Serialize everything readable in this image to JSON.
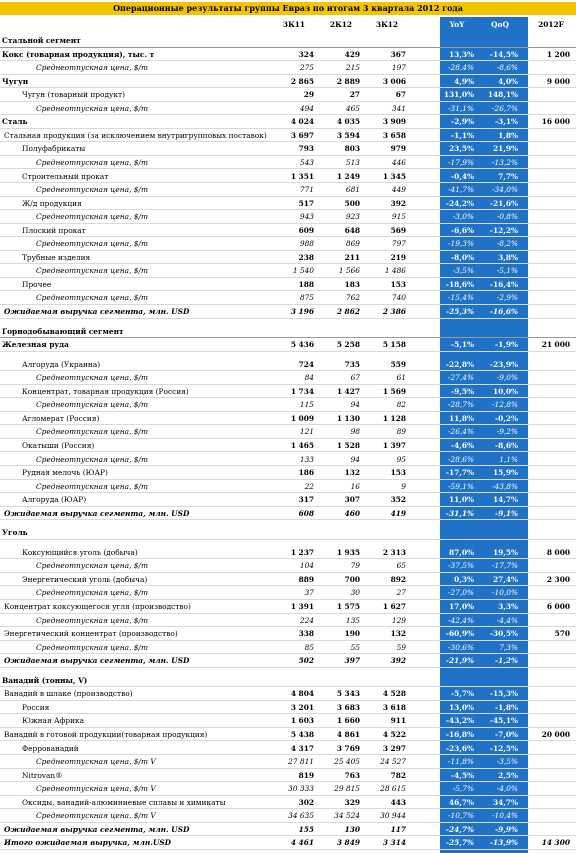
{
  "title": "Операционные результаты группы Евраз по итогам 3 квартала 2012 года",
  "header": [
    "3К11",
    "2К12",
    "3К12",
    "YoY",
    "QoQ",
    "2012F"
  ],
  "rows": [
    {
      "label": "Стальной сегмент"
    },
    {
      "label": "Кокс (товарная продукция), тыс. т",
      "cells": [
        "324",
        "429",
        "367",
        "13,3%",
        "-14,5%",
        "1 200"
      ]
    },
    {
      "label": "Среднеотпускная цена, $/т",
      "cells": [
        "275",
        "215",
        "197",
        "-28,4%",
        "-8,6%"
      ]
    },
    {
      "label": "Чугун",
      "cells": [
        "2 865",
        "2 889",
        "3 006",
        "4,9%",
        "4,0%",
        "9 000"
      ]
    },
    {
      "label": "Чугун (товарный продукт)",
      "cells": [
        "29",
        "27",
        "67",
        "131,0%",
        "148,1%"
      ]
    },
    {
      "label": "Среднеотпускная цена, $/т",
      "cells": [
        "494",
        "465",
        "341",
        "-31,1%",
        "-26,7%"
      ]
    },
    {
      "label": "Сталь",
      "cells": [
        "4 024",
        "4 035",
        "3 909",
        "-2,9%",
        "-3,1%",
        "16 000"
      ]
    },
    {
      "label": "Стальная продукция (за исключением внутригрупповых поставок)",
      "cells": [
        "3 697",
        "3 594",
        "3 658",
        "-1,1%",
        "1,8%"
      ]
    },
    {
      "label": "Полуфабрикаты",
      "cells": [
        "793",
        "803",
        "979",
        "23,5%",
        "21,9%"
      ]
    },
    {
      "label": "Среднеотпускная цена, $/т",
      "cells": [
        "543",
        "513",
        "446",
        "-17,9%",
        "-13,2%"
      ]
    },
    {
      "label": "Строительный прокат",
      "cells": [
        "1 351",
        "1 249",
        "1 345",
        "-0,4%",
        "7,7%"
      ]
    },
    {
      "label": "Среднеотпускная цена, $/т",
      "cells": [
        "771",
        "681",
        "449",
        "-41,7%",
        "-34,0%"
      ]
    },
    {
      "label": "Ж/д продукция",
      "cells": [
        "517",
        "500",
        "392",
        "-24,2%",
        "-21,6%"
      ]
    },
    {
      "label": "Среднеотпускная цена, $/т",
      "cells": [
        "943",
        "923",
        "915",
        "-3,0%",
        "-0,8%"
      ]
    },
    {
      "label": "Плоский прокат",
      "cells": [
        "609",
        "648",
        "569",
        "-6,6%",
        "-12,2%"
      ]
    },
    {
      "label": "Среднеотпускная цена, $/т",
      "cells": [
        "988",
        "869",
        "797",
        "-19,3%",
        "-8,2%"
      ]
    },
    {
      "label": "Трубные изделия",
      "cells": [
        "238",
        "211",
        "219",
        "-8,0%",
        "3,8%"
      ]
    },
    {
      "label": "Среднеотпускная цена, $/т",
      "cells": [
        "1 540",
        "1 566",
        "1 486",
        "-3,5%",
        "-5,1%"
      ]
    },
    {
      "label": "Прочее",
      "cells": [
        "188",
        "183",
        "153",
        "-18,6%",
        "-16,4%"
      ]
    },
    {
      "label": "Среднеотпускная цена, $/т",
      "cells": [
        "875",
        "762",
        "740",
        "-15,4%",
        "-2,9%"
      ]
    },
    {
      "label": "Ожидаемая выручка сегмента, млн. USD",
      "cells": [
        "3 196",
        "2 862",
        "2 386",
        "-25,3%",
        "-16,6%"
      ]
    },
    {
      "label": "Горнодобывающий сегмент"
    },
    {
      "label": "Железная руда",
      "cells": [
        "5 436",
        "5 258",
        "5 158",
        "-5,1%",
        "-1,9%",
        "21 000"
      ]
    },
    {
      "label": "Алгоруда (Украина)",
      "cells": [
        "724",
        "735",
        "559",
        "-22,8%",
        "-23,9%"
      ]
    },
    {
      "label": "Среднеотпускная цена, $/т",
      "cells": [
        "84",
        "67",
        "61",
        "-27,4%",
        "-9,0%"
      ]
    },
    {
      "label": "Концентрат, товарная продукция (Россия)",
      "cells": [
        "1 734",
        "1 427",
        "1 569",
        "-9,5%",
        "10,0%"
      ]
    },
    {
      "label": "Среднеотпускная цена, $/т",
      "cells": [
        "115",
        "94",
        "82",
        "-28,7%",
        "-12,8%"
      ]
    },
    {
      "label": "Агломерат (Россия)",
      "cells": [
        "1 009",
        "1 130",
        "1 128",
        "11,8%",
        "-0,2%"
      ]
    },
    {
      "label": "Среднеотпускная цена, $/т",
      "cells": [
        "121",
        "98",
        "89",
        "-26,4%",
        "-9,2%"
      ]
    },
    {
      "label": "Окатыши (Россия)",
      "cells": [
        "1 465",
        "1 528",
        "1 397",
        "-4,6%",
        "-8,6%"
      ]
    },
    {
      "label": "Среднеотпускная цена, $/т",
      "cells": [
        "133",
        "94",
        "95",
        "-28,6%",
        "1,1%"
      ]
    },
    {
      "label": "Рудная мелочь (ЮАР)",
      "cells": [
        "186",
        "132",
        "153",
        "-17,7%",
        "15,9%"
      ]
    },
    {
      "label": "Среднеотпускная цена, $/т",
      "cells": [
        "22",
        "16",
        "9",
        "-59,1%",
        "-43,8%"
      ]
    },
    {
      "label": "Алгоруда (ЮАР)",
      "cells": [
        "317",
        "307",
        "352",
        "11,0%",
        "14,7%"
      ]
    },
    {
      "label": "Ожидаемая выручка сегмента, млн. USD",
      "cells": [
        "608",
        "460",
        "419",
        "-31,1%",
        "-9,1%"
      ]
    },
    {
      "label": "Уголь"
    },
    {
      "label": "Коксующийся уголь (добыча)",
      "cells": [
        "1 237",
        "1 935",
        "2 313",
        "87,0%",
        "19,5%",
        "8 000"
      ]
    },
    {
      "label": "Среднеотпускная цена, $/т",
      "cells": [
        "104",
        "79",
        "65",
        "-37,5%",
        "-17,7%"
      ]
    },
    {
      "label": "Энергетический уголь (добыча)",
      "cells": [
        "889",
        "700",
        "892",
        "0,3%",
        "27,4%",
        "2 300"
      ]
    },
    {
      "label": "Среднеотпускная цена, $/т",
      "cells": [
        "37",
        "30",
        "27",
        "-27,0%",
        "-10,0%"
      ]
    },
    {
      "label": "Концентрат коксующегося угля (производство)",
      "cells": [
        "1 391",
        "1 575",
        "1 627",
        "17,0%",
        "3,3%",
        "6 000"
      ]
    },
    {
      "label": "Среднеотпускная цена, $/т",
      "cells": [
        "224",
        "135",
        "129",
        "-42,4%",
        "-4,4%"
      ]
    },
    {
      "label": "Энергетический концентрат (производство)",
      "cells": [
        "338",
        "190",
        "132",
        "-60,9%",
        "-30,5%",
        "570"
      ]
    },
    {
      "label": "Среднеотпускная цена, $/т",
      "cells": [
        "85",
        "55",
        "59",
        "-30,6%",
        "7,3%"
      ]
    },
    {
      "label": "Ожидаемая выручка сегмента, млн. USD",
      "cells": [
        "502",
        "397",
        "392",
        "-21,9%",
        "-1,2%"
      ]
    },
    {
      "label": "Ванадий (тонны, V)"
    },
    {
      "label": "Ванадий в шлаке (производство)",
      "cells": [
        "4 804",
        "5 343",
        "4 528",
        "-5,7%",
        "-15,3%"
      ]
    },
    {
      "label": "Россия",
      "cells": [
        "3 201",
        "3 683",
        "3 618",
        "13,0%",
        "-1,8%"
      ]
    },
    {
      "label": "Южная Африка",
      "cells": [
        "1 603",
        "1 660",
        "911",
        "-43,2%",
        "-45,1%"
      ]
    },
    {
      "label": "Ванадий в готовой продукции(товарная продукция)",
      "cells": [
        "5 438",
        "4 861",
        "4 522",
        "-16,8%",
        "-7,0%",
        "20 000"
      ]
    },
    {
      "label": "Феррованадий",
      "cells": [
        "4 317",
        "3 769",
        "3 297",
        "-23,6%",
        "-12,5%"
      ]
    },
    {
      "label": "Среднеотпускная цена, $/т V",
      "cells": [
        "27 811",
        "25 405",
        "24 527",
        "-11,8%",
        "-3,5%"
      ]
    },
    {
      "label": "Nitrovan®",
      "cells": [
        "819",
        "763",
        "782",
        "-4,5%",
        "2,5%"
      ]
    },
    {
      "label": "Среднеотпускная цена, $/т V",
      "cells": [
        "30 333",
        "29 815",
        "28 615",
        "-5,7%",
        "-4,0%"
      ]
    },
    {
      "label": "Оксиды, ванадий-алюминиевые сплавы и химикаты",
      "cells": [
        "302",
        "329",
        "443",
        "46,7%",
        "34,7%"
      ]
    },
    {
      "label": "Среднеотпускная цена, $/т V",
      "cells": [
        "34 635",
        "34 524",
        "30 944",
        "-10,7%",
        "-10,4%"
      ]
    },
    {
      "label": "Ожидаемая выручка сегмента, млн. USD",
      "cells": [
        "155",
        "130",
        "117",
        "-24,7%",
        "-9,9%"
      ]
    },
    {
      "label": "Итого ожидаемая выручка, млн.USD",
      "cells": [
        "4 461",
        "3 849",
        "3 314",
        "-25,7%",
        "-13,9%",
        "14 300"
      ]
    }
  ]
}
